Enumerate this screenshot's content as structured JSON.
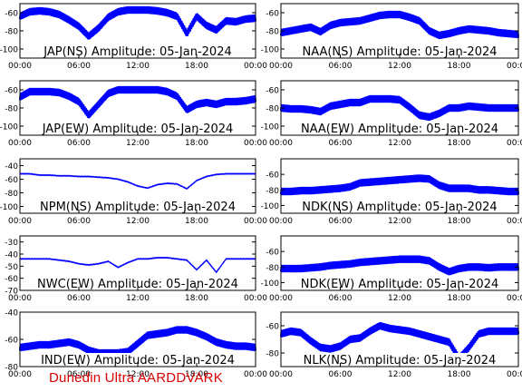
{
  "footer": {
    "text": "Dunedin Ultra AARDDVARK"
  },
  "colors": {
    "trace": "#0000ff",
    "axes": "#000000",
    "footer": "#d80000",
    "background": "#ffffff"
  },
  "chart_data": [
    {
      "type": "line",
      "title": "JAP(NS) Amplitude: 05-Jan-2024",
      "title_position": "bottom",
      "xlabel": "",
      "ylabel": "",
      "x_ticks": [
        "00:00",
        "06:00",
        "12:00",
        "18:00",
        "00:00"
      ],
      "y_ticks": [
        -60,
        -80,
        -100
      ],
      "ylim": [
        -110,
        -50
      ],
      "series": [
        {
          "x": [
            "00:00",
            "01:00",
            "02:00",
            "03:00",
            "04:00",
            "05:00",
            "06:00",
            "07:00",
            "08:00",
            "09:00",
            "10:00",
            "11:00",
            "12:00",
            "13:00",
            "14:00",
            "15:00",
            "16:00",
            "17:00",
            "18:00",
            "19:00",
            "20:00",
            "21:00",
            "22:00",
            "23:00",
            "00:00"
          ],
          "y": [
            -64,
            -59,
            -58,
            -59,
            -62,
            -68,
            -75,
            -86,
            -77,
            -65,
            -59,
            -57,
            -57,
            -57,
            -58,
            -60,
            -64,
            -83,
            -64,
            -74,
            -79,
            -69,
            -70,
            -67,
            -66
          ]
        }
      ]
    },
    {
      "type": "line",
      "title": "NAA(NS) Amplitude: 05-Jan-2024",
      "title_position": "bottom",
      "xlabel": "",
      "ylabel": "",
      "x_ticks": [
        "00:00",
        "06:00",
        "12:00",
        "18:00",
        "00:00"
      ],
      "y_ticks": [
        -60,
        -80,
        -100
      ],
      "ylim": [
        -110,
        -50
      ],
      "series": [
        {
          "x": [
            "00:00",
            "01:00",
            "02:00",
            "03:00",
            "04:00",
            "05:00",
            "06:00",
            "07:00",
            "08:00",
            "09:00",
            "10:00",
            "11:00",
            "12:00",
            "13:00",
            "14:00",
            "15:00",
            "16:00",
            "17:00",
            "18:00",
            "19:00",
            "20:00",
            "21:00",
            "22:00",
            "23:00",
            "00:00"
          ],
          "y": [
            -82,
            -80,
            -78,
            -76,
            -81,
            -74,
            -71,
            -70,
            -69,
            -66,
            -63,
            -62,
            -62,
            -65,
            -69,
            -80,
            -85,
            -83,
            -80,
            -78,
            -79,
            -80,
            -82,
            -83,
            -84
          ]
        }
      ]
    },
    {
      "type": "line",
      "title": "JAP(EW) Amplitude: 05-Jan-2024",
      "title_position": "bottom",
      "xlabel": "",
      "ylabel": "",
      "x_ticks": [
        "00:00",
        "06:00",
        "12:00",
        "18:00",
        "00:00"
      ],
      "y_ticks": [
        -60,
        -80,
        -100
      ],
      "ylim": [
        -110,
        -50
      ],
      "series": [
        {
          "x": [
            "00:00",
            "01:00",
            "02:00",
            "03:00",
            "04:00",
            "05:00",
            "06:00",
            "07:00",
            "08:00",
            "09:00",
            "10:00",
            "11:00",
            "12:00",
            "13:00",
            "14:00",
            "15:00",
            "16:00",
            "17:00",
            "18:00",
            "19:00",
            "20:00",
            "21:00",
            "22:00",
            "23:00",
            "00:00"
          ],
          "y": [
            -68,
            -62,
            -62,
            -62,
            -63,
            -67,
            -73,
            -88,
            -76,
            -64,
            -60,
            -60,
            -60,
            -60,
            -60,
            -62,
            -67,
            -82,
            -76,
            -74,
            -76,
            -73,
            -73,
            -72,
            -70
          ]
        }
      ]
    },
    {
      "type": "line",
      "title": "NAA(EW) Amplitude: 05-Jan-2024",
      "title_position": "bottom",
      "xlabel": "",
      "ylabel": "",
      "x_ticks": [
        "00:00",
        "06:00",
        "12:00",
        "18:00",
        "00:00"
      ],
      "y_ticks": [
        -60,
        -80,
        -100
      ],
      "ylim": [
        -110,
        -50
      ],
      "series": [
        {
          "x": [
            "00:00",
            "01:00",
            "02:00",
            "03:00",
            "04:00",
            "05:00",
            "06:00",
            "07:00",
            "08:00",
            "09:00",
            "10:00",
            "11:00",
            "12:00",
            "13:00",
            "14:00",
            "15:00",
            "16:00",
            "17:00",
            "18:00",
            "19:00",
            "20:00",
            "21:00",
            "22:00",
            "23:00",
            "00:00"
          ],
          "y": [
            -80,
            -81,
            -81,
            -82,
            -84,
            -78,
            -76,
            -74,
            -74,
            -70,
            -70,
            -70,
            -71,
            -79,
            -88,
            -90,
            -86,
            -80,
            -80,
            -78,
            -79,
            -80,
            -80,
            -80,
            -80
          ]
        }
      ]
    },
    {
      "type": "line",
      "title": "NPM(NS) Amplitude: 05-Jan-2024",
      "title_position": "bottom",
      "xlabel": "",
      "ylabel": "",
      "x_ticks": [
        "00:00",
        "06:00",
        "12:00",
        "18:00",
        "00:00"
      ],
      "y_ticks": [
        -40,
        -60,
        -80,
        -100
      ],
      "ylim": [
        -110,
        -30
      ],
      "series": [
        {
          "x": [
            "00:00",
            "01:00",
            "02:00",
            "03:00",
            "04:00",
            "05:00",
            "06:00",
            "07:00",
            "08:00",
            "09:00",
            "10:00",
            "11:00",
            "12:00",
            "13:00",
            "14:00",
            "15:00",
            "16:00",
            "17:00",
            "18:00",
            "19:00",
            "20:00",
            "21:00",
            "22:00",
            "23:00",
            "00:00"
          ],
          "y": [
            -52,
            -52,
            -54,
            -54,
            -55,
            -55,
            -56,
            -56,
            -57,
            -58,
            -60,
            -64,
            -70,
            -73,
            -68,
            -66,
            -67,
            -74,
            -62,
            -56,
            -53,
            -52,
            -52,
            -52,
            -52
          ]
        }
      ]
    },
    {
      "type": "line",
      "title": "NDK(NS) Amplitude: 05-Jan-2024",
      "title_position": "bottom",
      "xlabel": "",
      "ylabel": "",
      "x_ticks": [
        "00:00",
        "06:00",
        "12:00",
        "18:00",
        "00:00"
      ],
      "y_ticks": [
        -60,
        -80,
        -100
      ],
      "ylim": [
        -110,
        -40
      ],
      "series": [
        {
          "x": [
            "00:00",
            "01:00",
            "02:00",
            "03:00",
            "04:00",
            "05:00",
            "06:00",
            "07:00",
            "08:00",
            "09:00",
            "10:00",
            "11:00",
            "12:00",
            "13:00",
            "14:00",
            "15:00",
            "16:00",
            "17:00",
            "18:00",
            "19:00",
            "20:00",
            "21:00",
            "22:00",
            "23:00",
            "00:00"
          ],
          "y": [
            -82,
            -82,
            -81,
            -81,
            -80,
            -79,
            -78,
            -76,
            -71,
            -70,
            -69,
            -68,
            -67,
            -66,
            -65,
            -66,
            -74,
            -78,
            -78,
            -78,
            -80,
            -80,
            -81,
            -82,
            -82
          ]
        }
      ]
    },
    {
      "type": "line",
      "title": "NWC(EW) Amplitude: 05-Jan-2024",
      "title_position": "bottom",
      "xlabel": "",
      "ylabel": "",
      "x_ticks": [
        "00:00",
        "06:00",
        "12:00",
        "18:00",
        "00:00"
      ],
      "y_ticks": [
        -30,
        -40,
        -50,
        -60,
        -70
      ],
      "ylim": [
        -70,
        -25
      ],
      "series": [
        {
          "x": [
            "00:00",
            "01:00",
            "02:00",
            "03:00",
            "04:00",
            "05:00",
            "06:00",
            "07:00",
            "08:00",
            "09:00",
            "10:00",
            "11:00",
            "12:00",
            "13:00",
            "14:00",
            "15:00",
            "16:00",
            "17:00",
            "18:00",
            "19:00",
            "20:00",
            "21:00",
            "22:00",
            "23:00",
            "00:00"
          ],
          "y": [
            -44,
            -44,
            -44,
            -44,
            -45,
            -46,
            -48,
            -49,
            -48,
            -46,
            -51,
            -47,
            -44,
            -44,
            -43,
            -43,
            -44,
            -45,
            -53,
            -45,
            -55,
            -44,
            -44,
            -44,
            -44
          ]
        }
      ]
    },
    {
      "type": "line",
      "title": "NDK(EW) Amplitude: 05-Jan-2024",
      "title_position": "bottom",
      "xlabel": "",
      "ylabel": "",
      "x_ticks": [
        "00:00",
        "06:00",
        "12:00",
        "18:00",
        "00:00"
      ],
      "y_ticks": [
        -60,
        -80,
        -100
      ],
      "ylim": [
        -110,
        -40
      ],
      "series": [
        {
          "x": [
            "00:00",
            "01:00",
            "02:00",
            "03:00",
            "04:00",
            "05:00",
            "06:00",
            "07:00",
            "08:00",
            "09:00",
            "10:00",
            "11:00",
            "12:00",
            "13:00",
            "14:00",
            "15:00",
            "16:00",
            "17:00",
            "18:00",
            "19:00",
            "20:00",
            "21:00",
            "22:00",
            "23:00",
            "00:00"
          ],
          "y": [
            -82,
            -82,
            -82,
            -81,
            -80,
            -78,
            -77,
            -76,
            -74,
            -73,
            -72,
            -71,
            -70,
            -70,
            -70,
            -72,
            -80,
            -86,
            -82,
            -80,
            -80,
            -81,
            -80,
            -80,
            -80
          ]
        }
      ]
    },
    {
      "type": "line",
      "title": "IND(EW) Amplitude: 05-Jan-2024",
      "title_position": "bottom",
      "xlabel": "",
      "ylabel": "",
      "x_ticks": [
        "00:00",
        "06:00",
        "12:00",
        "18:00",
        "00:00"
      ],
      "y_ticks": [
        -40,
        -60,
        -80
      ],
      "ylim": [
        -80,
        -40
      ],
      "series": [
        {
          "x": [
            "00:00",
            "01:00",
            "02:00",
            "03:00",
            "04:00",
            "05:00",
            "06:00",
            "07:00",
            "08:00",
            "09:00",
            "10:00",
            "11:00",
            "12:00",
            "13:00",
            "14:00",
            "15:00",
            "16:00",
            "17:00",
            "18:00",
            "19:00",
            "20:00",
            "21:00",
            "22:00",
            "23:00",
            "00:00"
          ],
          "y": [
            -66,
            -65,
            -64,
            -64,
            -63,
            -62,
            -64,
            -68,
            -70,
            -70,
            -70,
            -69,
            -63,
            -57,
            -56,
            -55,
            -53,
            -53,
            -55,
            -58,
            -62,
            -64,
            -65,
            -65,
            -66
          ]
        }
      ]
    },
    {
      "type": "line",
      "title": "NLK(NS) Amplitude: 05-Jan-2024",
      "title_position": "bottom",
      "xlabel": "",
      "ylabel": "",
      "x_ticks": [
        "00:00",
        "06:00",
        "12:00",
        "18:00",
        "00:00"
      ],
      "y_ticks": [
        -60,
        -80
      ],
      "ylim": [
        -90,
        -50
      ],
      "series": [
        {
          "x": [
            "00:00",
            "01:00",
            "02:00",
            "03:00",
            "04:00",
            "05:00",
            "06:00",
            "07:00",
            "08:00",
            "09:00",
            "10:00",
            "11:00",
            "12:00",
            "13:00",
            "14:00",
            "15:00",
            "16:00",
            "17:00",
            "18:00",
            "19:00",
            "20:00",
            "21:00",
            "22:00",
            "23:00",
            "00:00"
          ],
          "y": [
            -66,
            -64,
            -65,
            -71,
            -76,
            -77,
            -75,
            -70,
            -69,
            -64,
            -60,
            -62,
            -63,
            -64,
            -66,
            -68,
            -70,
            -72,
            -84,
            -76,
            -66,
            -64,
            -64,
            -64,
            -64
          ]
        }
      ]
    }
  ]
}
